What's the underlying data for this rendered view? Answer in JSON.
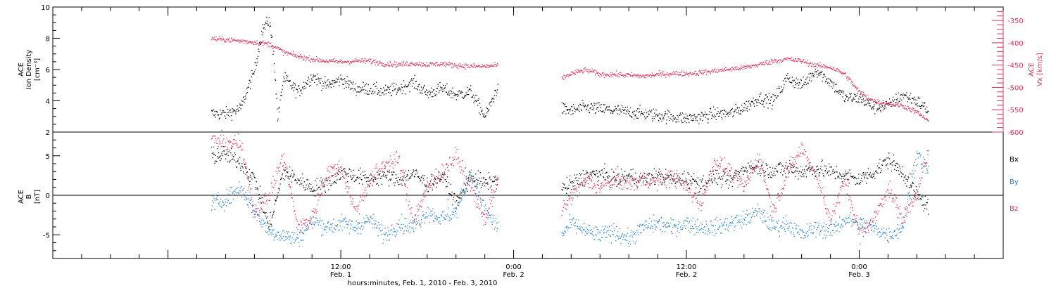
{
  "colors": {
    "black": "#000000",
    "magenta": "#e0305a",
    "blue": "#1f7fd6"
  },
  "x_axis": {
    "title": "hours:minutes, Feb.  1, 2010 - Feb.  3, 2010",
    "tick_labels": [
      {
        "time": "12:00",
        "date": "Feb. 1"
      },
      {
        "time": "0:00",
        "date": "Feb. 2"
      },
      {
        "time": "12:00",
        "date": "Feb. 2"
      },
      {
        "time": "0:00",
        "date": "Feb. 3"
      }
    ]
  },
  "chart_data": [
    {
      "type": "scatter",
      "panel": "top",
      "x_unit": "hours since 2010-02-01 00:00",
      "xlim": [
        -8,
        58
      ],
      "data_gap_hours": [
        22.9,
        27.3
      ],
      "left_axis": {
        "label_lines": [
          "ACE",
          "Ion Density",
          "[cm⁻³]"
        ],
        "ylim": [
          2,
          10
        ],
        "ticks": [
          2,
          4,
          6,
          8,
          10
        ]
      },
      "right_axis": {
        "label_lines": [
          "ACE",
          "Vx [km/s]"
        ],
        "ylim": [
          -600,
          -320
        ],
        "ticks": [
          -350,
          -400,
          -450,
          -500,
          -550,
          -600
        ]
      },
      "series": [
        {
          "axis": "left",
          "color": "#000000",
          "x": [
            3.0,
            4.0,
            5.0,
            6.0,
            6.5,
            7.0,
            7.3,
            7.6,
            8.0,
            9.0,
            10.0,
            11.0,
            12.0,
            13.0,
            14.0,
            15.0,
            16.0,
            17.0,
            18.0,
            19.0,
            20.0,
            21.0,
            22.0,
            22.9,
            27.3,
            28.0,
            29.0,
            30.0,
            31.0,
            32.0,
            33.0,
            34.0,
            35.0,
            36.0,
            37.0,
            38.0,
            39.0,
            40.0,
            41.0,
            42.0,
            43.0,
            44.0,
            45.0,
            46.0,
            47.0,
            48.0,
            49.0,
            50.0,
            51.0,
            52.0,
            52.8
          ],
          "y": [
            3.2,
            3.2,
            3.5,
            6.0,
            8.5,
            9.2,
            7.2,
            2.8,
            5.5,
            4.6,
            5.6,
            5.0,
            5.4,
            4.8,
            4.8,
            4.6,
            4.8,
            5.2,
            4.5,
            4.8,
            4.4,
            4.6,
            3.0,
            5.0,
            3.5,
            3.4,
            3.6,
            3.5,
            3.4,
            3.3,
            3.2,
            3.1,
            3.0,
            2.9,
            3.0,
            3.2,
            3.2,
            3.6,
            4.2,
            4.0,
            5.5,
            5.0,
            6.0,
            5.2,
            4.2,
            4.2,
            3.6,
            3.7,
            4.4,
            4.0,
            3.4
          ]
        },
        {
          "axis": "right",
          "color": "#e0305a",
          "x": [
            3.0,
            4.0,
            5.0,
            6.0,
            7.0,
            7.5,
            8.0,
            9.0,
            10.0,
            11.0,
            12.0,
            13.0,
            14.0,
            15.0,
            16.0,
            17.0,
            18.0,
            19.0,
            20.0,
            21.0,
            22.0,
            22.9,
            27.3,
            28.0,
            29.0,
            30.0,
            31.0,
            32.0,
            33.0,
            34.0,
            35.0,
            36.0,
            37.0,
            38.0,
            39.0,
            40.0,
            41.0,
            42.0,
            43.0,
            44.0,
            45.0,
            46.0,
            47.0,
            48.0,
            49.0,
            50.0,
            51.0,
            52.0,
            52.8
          ],
          "y": [
            -390,
            -392,
            -395,
            -398,
            -402,
            -410,
            -420,
            -430,
            -436,
            -440,
            -442,
            -440,
            -440,
            -446,
            -448,
            -445,
            -448,
            -446,
            -450,
            -452,
            -452,
            -450,
            -480,
            -468,
            -460,
            -470,
            -470,
            -472,
            -474,
            -470,
            -468,
            -468,
            -466,
            -462,
            -458,
            -455,
            -448,
            -440,
            -436,
            -440,
            -450,
            -454,
            -470,
            -510,
            -530,
            -535,
            -540,
            -555,
            -575
          ]
        }
      ]
    },
    {
      "type": "scatter",
      "panel": "bottom",
      "x_unit": "hours since 2010-02-01 00:00",
      "xlim": [
        -8,
        58
      ],
      "data_gap_hours": [
        22.9,
        27.3
      ],
      "left_axis": {
        "label_lines": [
          "ACE",
          "B",
          "[nT]"
        ],
        "ylim": [
          -8,
          8
        ],
        "ticks": [
          -5,
          0,
          5
        ]
      },
      "zero_line": 0,
      "series": [
        {
          "name": "Bx",
          "color": "#000000",
          "x": [
            3.0,
            4.0,
            5.0,
            6.0,
            7.0,
            8.0,
            9.0,
            10.0,
            11.0,
            12.0,
            13.0,
            14.0,
            15.0,
            16.0,
            17.0,
            18.0,
            19.0,
            20.0,
            21.0,
            22.0,
            22.9,
            27.3,
            28.0,
            29.0,
            30.0,
            31.0,
            32.0,
            33.0,
            34.0,
            35.0,
            36.0,
            37.0,
            38.0,
            39.0,
            40.0,
            41.0,
            42.0,
            43.0,
            44.0,
            45.0,
            46.0,
            47.0,
            48.0,
            49.0,
            50.0,
            51.0,
            52.0,
            52.8
          ],
          "y": [
            5.0,
            5.2,
            4.2,
            2.0,
            -4.0,
            3.0,
            2.0,
            1.0,
            1.5,
            3.0,
            2.5,
            2.0,
            2.5,
            2.0,
            2.8,
            1.5,
            2.5,
            -1.0,
            2.5,
            1.5,
            2.0,
            0.8,
            1.5,
            2.5,
            2.8,
            2.0,
            2.5,
            2.0,
            2.5,
            2.0,
            2.2,
            1.5,
            2.5,
            1.8,
            3.5,
            3.5,
            3.2,
            3.5,
            3.0,
            3.5,
            3.0,
            2.5,
            2.0,
            3.0,
            4.5,
            3.0,
            0.0,
            -1.5
          ]
        },
        {
          "name": "By",
          "color": "#1f7fd6",
          "x": [
            3.0,
            4.0,
            5.0,
            6.0,
            7.0,
            8.0,
            9.0,
            10.0,
            11.0,
            12.0,
            13.0,
            14.0,
            15.0,
            16.0,
            17.0,
            18.0,
            19.0,
            20.0,
            21.0,
            22.0,
            22.9,
            27.3,
            28.0,
            29.0,
            30.0,
            31.0,
            32.0,
            33.0,
            34.0,
            35.0,
            36.0,
            37.0,
            38.0,
            39.0,
            40.0,
            41.0,
            42.0,
            43.0,
            44.0,
            45.0,
            46.0,
            47.0,
            48.0,
            49.0,
            50.0,
            51.0,
            52.0,
            52.8
          ],
          "y": [
            -1.0,
            -0.5,
            1.0,
            -2.0,
            -4.5,
            -5.0,
            -5.5,
            -3.0,
            -4.0,
            -3.5,
            -4.0,
            -3.0,
            -5.0,
            -3.5,
            -4.0,
            -2.0,
            -3.0,
            -2.0,
            3.0,
            -2.0,
            -4.0,
            -5.0,
            -3.5,
            -4.5,
            -5.0,
            -4.5,
            -5.5,
            -4.0,
            -3.5,
            -4.0,
            -3.5,
            -4.0,
            -4.0,
            -3.5,
            -3.0,
            -2.0,
            -4.0,
            -3.5,
            -5.0,
            -4.0,
            -4.5,
            -3.0,
            -3.5,
            -4.0,
            -5.0,
            -4.0,
            5.5,
            3.0
          ]
        },
        {
          "name": "Bz",
          "color": "#e0305a",
          "x": [
            3.0,
            4.0,
            5.0,
            6.0,
            7.0,
            8.0,
            9.0,
            10.0,
            11.0,
            12.0,
            13.0,
            14.0,
            15.0,
            16.0,
            17.0,
            18.0,
            19.0,
            20.0,
            21.0,
            22.0,
            22.9,
            27.3,
            28.0,
            29.0,
            30.0,
            31.0,
            32.0,
            33.0,
            34.0,
            35.0,
            36.0,
            37.0,
            38.0,
            39.0,
            40.0,
            41.0,
            42.0,
            43.0,
            44.0,
            45.0,
            46.0,
            47.0,
            48.0,
            49.0,
            50.0,
            51.0,
            52.0,
            52.8
          ],
          "y": [
            7.0,
            6.8,
            6.5,
            -2.0,
            0.0,
            5.0,
            -4.0,
            -3.0,
            3.0,
            3.5,
            -2.0,
            2.0,
            4.0,
            4.5,
            -3.0,
            1.0,
            3.0,
            5.0,
            1.0,
            -3.0,
            2.0,
            -2.0,
            0.0,
            2.0,
            1.0,
            2.0,
            1.5,
            2.0,
            1.8,
            2.5,
            1.0,
            -1.0,
            4.5,
            3.0,
            1.0,
            5.0,
            -2.0,
            3.0,
            6.0,
            2.5,
            -3.0,
            2.0,
            -5.0,
            -3.0,
            1.0,
            -3.0,
            0.5,
            5.5
          ]
        }
      ],
      "legend": [
        "Bx",
        "By",
        "Bz"
      ],
      "legend_placement": "right"
    }
  ]
}
